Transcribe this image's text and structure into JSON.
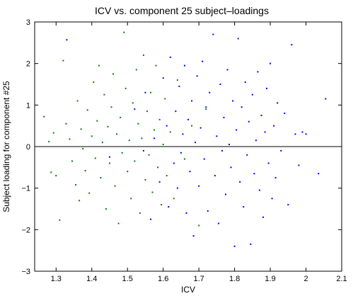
{
  "chart_data": {
    "type": "scatter",
    "title": "ICV vs. component 25 subject–loadings",
    "xlabel": "ICV",
    "ylabel": "Subject loading for component #25",
    "xlim": [
      1.24,
      2.1
    ],
    "ylim": [
      -3,
      3
    ],
    "xticks": [
      "1.3",
      "1.4",
      "1.5",
      "1.6",
      "1.7",
      "1.8",
      "1.9",
      "2",
      "2.1"
    ],
    "yticks": [
      "−3",
      "−2",
      "−1",
      "0",
      "1",
      "2",
      "3"
    ],
    "grid": false,
    "legend": "none",
    "reference_line": {
      "y": 0,
      "color": "#000000"
    },
    "colors": {
      "green": "#007f00",
      "blue": "#0000ff",
      "axes": "#000000"
    },
    "series": [
      {
        "color": "#007f00",
        "points": [
          [
            1.266,
            0.72
          ],
          [
            1.28,
            0.12
          ],
          [
            1.286,
            -0.62
          ],
          [
            1.293,
            0.33
          ],
          [
            1.3,
            -0.7
          ],
          [
            1.31,
            -1.77
          ],
          [
            1.32,
            2.07
          ],
          [
            1.328,
            0.55
          ],
          [
            1.338,
            0.18
          ],
          [
            1.345,
            -0.35
          ],
          [
            1.355,
            -0.92
          ],
          [
            1.36,
            1.1
          ],
          [
            1.365,
            -1.3
          ],
          [
            1.37,
            0.42
          ],
          [
            1.375,
            -0.05
          ],
          [
            1.382,
            -0.58
          ],
          [
            1.388,
            0.88
          ],
          [
            1.393,
            -1.12
          ],
          [
            1.4,
            0.25
          ],
          [
            1.405,
            1.55
          ],
          [
            1.41,
            -0.28
          ],
          [
            1.415,
            0.62
          ],
          [
            1.42,
            1.95
          ],
          [
            1.425,
            -0.75
          ],
          [
            1.43,
            0.1
          ],
          [
            1.435,
            1.25
          ],
          [
            1.44,
            -1.5
          ],
          [
            1.445,
            0.48
          ],
          [
            1.45,
            -0.4
          ],
          [
            1.455,
            0.95
          ],
          [
            1.46,
            1.75
          ],
          [
            1.465,
            -0.95
          ],
          [
            1.47,
            0.3
          ],
          [
            1.475,
            -1.85
          ],
          [
            1.48,
            0.7
          ],
          [
            1.485,
            -0.15
          ],
          [
            1.49,
            2.75
          ],
          [
            1.495,
            1.4
          ],
          [
            1.5,
            -0.6
          ],
          [
            1.505,
            0.15
          ],
          [
            1.51,
            -1.25
          ],
          [
            1.515,
            1.05
          ],
          [
            1.52,
            -0.35
          ],
          [
            1.525,
            1.85
          ],
          [
            1.53,
            0.55
          ],
          [
            1.535,
            -1.6
          ],
          [
            1.54,
            0.2
          ],
          [
            1.545,
            2.2
          ],
          [
            1.55,
            -0.8
          ],
          [
            1.555,
            0.85
          ],
          [
            1.56,
            -0.2
          ],
          [
            1.565,
            1.3
          ],
          [
            1.57,
            -1.1
          ],
          [
            1.575,
            0.4
          ],
          [
            1.58,
            1.95
          ],
          [
            1.585,
            -0.5
          ],
          [
            1.59,
            0.65
          ],
          [
            1.595,
            -1.4
          ],
          [
            1.6,
            0.05
          ],
          [
            1.605,
            1.15
          ],
          [
            1.61,
            -0.7
          ],
          [
            1.62,
            0.35
          ],
          [
            1.63,
            -1.25
          ],
          [
            1.64,
            1.6
          ],
          [
            1.66,
            -0.3
          ],
          [
            1.68,
            0.5
          ],
          [
            1.7,
            -1.9
          ],
          [
            1.72,
            0.9
          ]
        ]
      },
      {
        "color": "#0000ff",
        "points": [
          [
            1.33,
            2.57
          ],
          [
            1.45,
            -0.25
          ],
          [
            1.52,
            0.9
          ],
          [
            1.545,
            -0.1
          ],
          [
            1.55,
            1.3
          ],
          [
            1.565,
            -1.75
          ],
          [
            1.575,
            0.2
          ],
          [
            1.59,
            -0.85
          ],
          [
            1.6,
            1.65
          ],
          [
            1.61,
            0.5
          ],
          [
            1.615,
            -1.45
          ],
          [
            1.62,
            2.15
          ],
          [
            1.63,
            -0.4
          ],
          [
            1.635,
            0.85
          ],
          [
            1.64,
            -1.0
          ],
          [
            1.645,
            1.45
          ],
          [
            1.65,
            -0.15
          ],
          [
            1.655,
            0.3
          ],
          [
            1.66,
            1.95
          ],
          [
            1.665,
            -1.6
          ],
          [
            1.67,
            0.65
          ],
          [
            1.675,
            -0.6
          ],
          [
            1.68,
            1.1
          ],
          [
            1.685,
            -2.15
          ],
          [
            1.69,
            0.1
          ],
          [
            1.695,
            1.7
          ],
          [
            1.7,
            -0.95
          ],
          [
            1.705,
            0.45
          ],
          [
            1.71,
            2.05
          ],
          [
            1.715,
            -0.3
          ],
          [
            1.72,
            0.95
          ],
          [
            1.725,
            -1.55
          ],
          [
            1.73,
            1.3
          ],
          [
            1.74,
            2.7
          ],
          [
            1.745,
            -0.7
          ],
          [
            1.75,
            0.25
          ],
          [
            1.755,
            -1.85
          ],
          [
            1.76,
            1.5
          ],
          [
            1.765,
            -0.1
          ],
          [
            1.77,
            0.7
          ],
          [
            1.775,
            -1.15
          ],
          [
            1.78,
            1.85
          ],
          [
            1.785,
            0.05
          ],
          [
            1.79,
            -0.5
          ],
          [
            1.795,
            1.1
          ],
          [
            1.8,
            -2.4
          ],
          [
            1.805,
            0.4
          ],
          [
            1.81,
            2.6
          ],
          [
            1.815,
            -0.85
          ],
          [
            1.82,
            0.95
          ],
          [
            1.825,
            -1.45
          ],
          [
            1.83,
            1.55
          ],
          [
            1.835,
            -0.2
          ],
          [
            1.84,
            0.6
          ],
          [
            1.845,
            -2.35
          ],
          [
            1.85,
            1.25
          ],
          [
            1.855,
            -0.65
          ],
          [
            1.86,
            0.15
          ],
          [
            1.865,
            1.8
          ],
          [
            1.87,
            -1.05
          ],
          [
            1.875,
            0.75
          ],
          [
            1.88,
            -1.7
          ],
          [
            1.885,
            0.35
          ],
          [
            1.89,
            1.4
          ],
          [
            1.895,
            -0.4
          ],
          [
            1.9,
            2.0
          ],
          [
            1.905,
            -1.25
          ],
          [
            1.91,
            0.5
          ],
          [
            1.915,
            -0.75
          ],
          [
            1.92,
            1.05
          ],
          [
            1.93,
            -0.1
          ],
          [
            1.94,
            0.8
          ],
          [
            1.95,
            -1.4
          ],
          [
            1.96,
            2.45
          ],
          [
            1.97,
            0.3
          ],
          [
            1.98,
            -0.45
          ],
          [
            1.99,
            0.35
          ],
          [
            2.0,
            0.3
          ],
          [
            2.035,
            -0.65
          ],
          [
            2.055,
            1.15
          ]
        ]
      }
    ]
  }
}
